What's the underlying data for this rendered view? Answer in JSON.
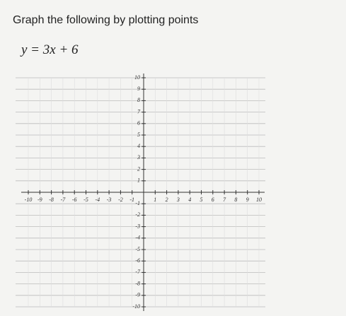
{
  "title": "Graph the following by plotting points",
  "equation": "y = 3x + 6",
  "graph": {
    "xlim": [
      -10,
      10
    ],
    "ylim": [
      -10,
      10
    ],
    "xticks": [
      -10,
      -9,
      -8,
      -7,
      -6,
      -5,
      -4,
      -3,
      -2,
      -1,
      1,
      2,
      3,
      4,
      5,
      6,
      7,
      8,
      9,
      10
    ],
    "yticks": [
      10,
      9,
      8,
      7,
      6,
      5,
      4,
      3,
      2,
      1,
      -1,
      -2,
      -3,
      -4,
      -5,
      -6,
      -7,
      -8,
      -9,
      -10
    ]
  }
}
